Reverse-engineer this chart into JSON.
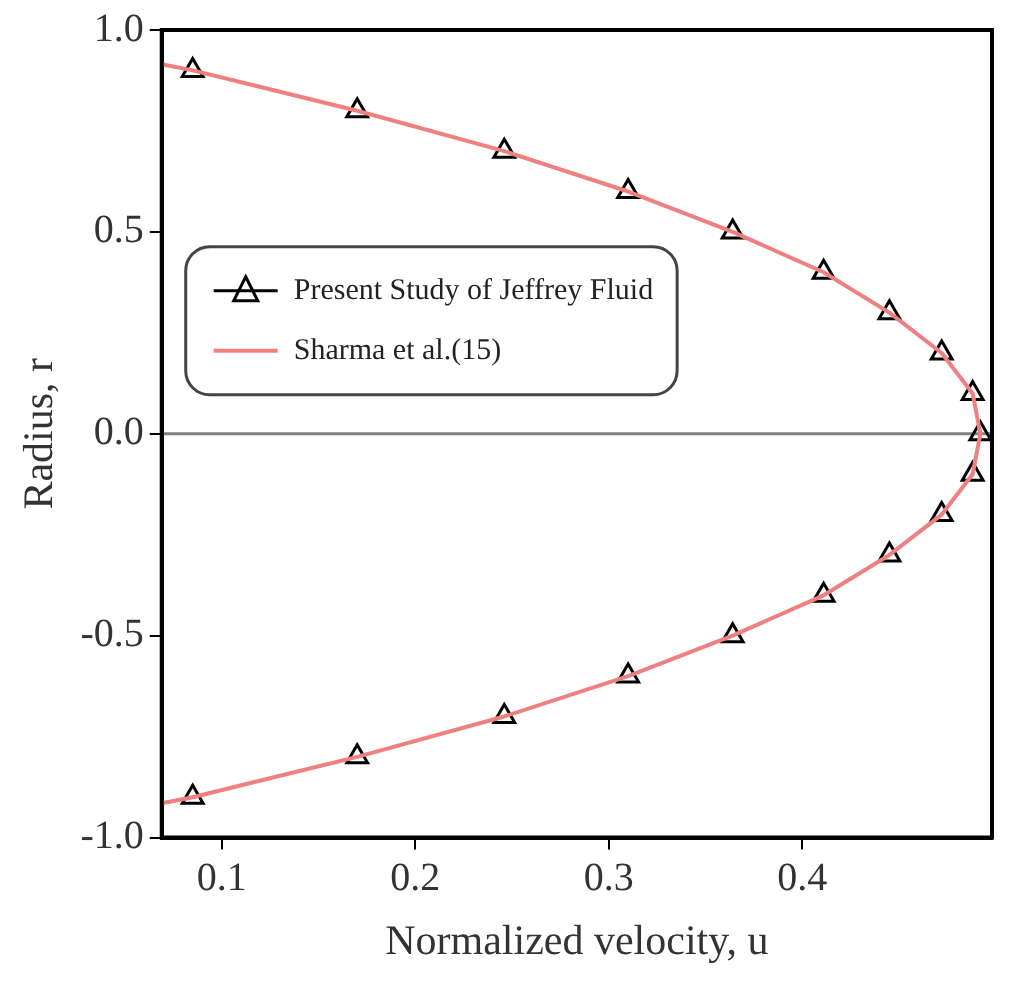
{
  "chart_data": {
    "type": "scatter",
    "xlabel": "Normalized velocity, u",
    "ylabel": "Radius, r",
    "xlim": [
      0.069,
      0.498
    ],
    "xticks": [
      0.1,
      0.2,
      0.3,
      0.4
    ],
    "ylim": [
      -1,
      1
    ],
    "yticks": [
      {
        "value": -1,
        "label": "-1.0"
      },
      {
        "value": -0.5,
        "label": "-0.5"
      },
      {
        "value": 0,
        "label": "0.0"
      },
      {
        "value": 0.5,
        "label": "0.5"
      },
      {
        "value": 1,
        "label": "1.0"
      }
    ],
    "ref_lines": [
      {
        "axis": "y",
        "value": 0,
        "color": "#808080"
      }
    ],
    "legend": "center left",
    "grid": false,
    "series": [
      {
        "name": "Sharma et al.(15)",
        "type": "line",
        "color": "#f08080",
        "marker": "none",
        "line_style": "solid",
        "x": [
          0.069,
          0.085,
          0.17,
          0.246,
          0.31,
          0.364,
          0.411,
          0.445,
          0.472,
          0.488,
          0.492,
          0.488,
          0.472,
          0.445,
          0.411,
          0.364,
          0.31,
          0.246,
          0.17,
          0.085,
          0.069
        ],
        "values": [
          0.915,
          0.9,
          0.8,
          0.7,
          0.6,
          0.5,
          0.4,
          0.3,
          0.2,
          0.1,
          0,
          -0.1,
          -0.2,
          -0.3,
          -0.4,
          -0.5,
          -0.6,
          -0.7,
          -0.8,
          -0.9,
          -0.915
        ]
      },
      {
        "name": "Present Study of Jeffrey Fluid",
        "color": "#000000",
        "marker": "triangle",
        "x": [
          0.085,
          0.17,
          0.246,
          0.31,
          0.364,
          0.411,
          0.445,
          0.472,
          0.488,
          0.492,
          0.488,
          0.472,
          0.445,
          0.411,
          0.364,
          0.31,
          0.246,
          0.17,
          0.085
        ],
        "values": [
          0.9,
          0.8,
          0.7,
          0.6,
          0.5,
          0.4,
          0.3,
          0.2,
          0.1,
          0,
          -0.1,
          -0.2,
          -0.3,
          -0.4,
          -0.5,
          -0.6,
          -0.7,
          -0.8,
          -0.9
        ]
      }
    ]
  }
}
